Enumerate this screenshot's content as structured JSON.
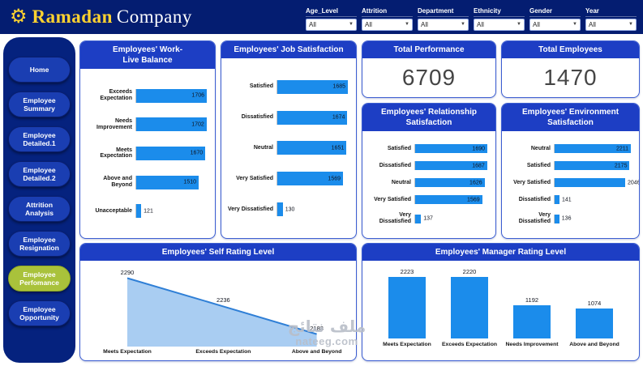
{
  "header": {
    "logo_primary": "Ramadan",
    "logo_secondary": "Company",
    "filters": [
      {
        "label": "Age_Level",
        "value": "All"
      },
      {
        "label": "Attrition",
        "value": "All"
      },
      {
        "label": "Department",
        "value": "All"
      },
      {
        "label": "Ethnicity",
        "value": "All"
      },
      {
        "label": "Gender",
        "value": "All"
      },
      {
        "label": "Year",
        "value": "All"
      }
    ]
  },
  "sidebar": {
    "items": [
      {
        "label": "Home",
        "active": false
      },
      {
        "label": "Employee Summary",
        "active": false
      },
      {
        "label": "Employee Detailed.1",
        "active": false
      },
      {
        "label": "Employee Detailed.2",
        "active": false
      },
      {
        "label": "Attrition Analysis",
        "active": false
      },
      {
        "label": "Employee Resignation",
        "active": false
      },
      {
        "label": "Employee Perfomance",
        "active": true
      },
      {
        "label": "Employee Opportunity",
        "active": false
      }
    ]
  },
  "kpis": [
    {
      "title": "Total Performance",
      "value": "6709"
    },
    {
      "title": "Total Employees",
      "value": "1470"
    }
  ],
  "chart_data": [
    {
      "type": "bar",
      "orientation": "horizontal",
      "title": "Employees' Work-Live Balance",
      "rows": [
        {
          "label": "Exceeds Expectation",
          "value": 1706,
          "value_label": "in"
        },
        {
          "label": "Needs Improvement",
          "value": 1702,
          "value_label": "in"
        },
        {
          "label": "Meets Expectation",
          "value": 1670,
          "value_label": "in"
        },
        {
          "label": "Above and Beyond",
          "value": 1510,
          "value_label": "in"
        },
        {
          "label": "Unacceptable",
          "value": 121,
          "value_label": "out"
        }
      ]
    },
    {
      "type": "bar",
      "orientation": "horizontal",
      "title": "Employees' Job Satisfaction",
      "rows": [
        {
          "label": "Satisfied",
          "value": 1685,
          "value_label": "in"
        },
        {
          "label": "Dissatisfied",
          "value": 1674,
          "value_label": "in"
        },
        {
          "label": "Neutral",
          "value": 1651,
          "value_label": "in"
        },
        {
          "label": "Very Satisfied",
          "value": 1569,
          "value_label": "in"
        },
        {
          "label": "Very Dissatisfied",
          "value": 130,
          "value_label": "out"
        }
      ]
    },
    {
      "type": "bar",
      "orientation": "horizontal",
      "title": "Employees' Relationship Satisfaction",
      "rows": [
        {
          "label": "Satisfied",
          "value": 1690,
          "value_label": "in"
        },
        {
          "label": "Dissatisfied",
          "value": 1687,
          "value_label": "in"
        },
        {
          "label": "Neutral",
          "value": 1626,
          "value_label": "in"
        },
        {
          "label": "Very Satisfied",
          "value": 1569,
          "value_label": "in"
        },
        {
          "label": "Very Dissatisfied",
          "value": 137,
          "value_label": "out"
        }
      ]
    },
    {
      "type": "bar",
      "orientation": "horizontal",
      "title": "Employees' Environment Satisfaction",
      "rows": [
        {
          "label": "Neutral",
          "value": 2211,
          "value_label": "in"
        },
        {
          "label": "Satisfied",
          "value": 2175,
          "value_label": "in"
        },
        {
          "label": "Very Satisfied",
          "value": 2046,
          "value_label": "out"
        },
        {
          "label": "Dissatisfied",
          "value": 141,
          "value_label": "out"
        },
        {
          "label": "Very Dissatisfied",
          "value": 136,
          "value_label": "out"
        }
      ]
    },
    {
      "type": "area",
      "title": "Employees' Self Rating Level",
      "categories": [
        "Meets Expectation",
        "Exceeds Expectation",
        "Above and Beyond"
      ],
      "values": [
        2290,
        2236,
        2183
      ],
      "legend": "off",
      "grid": "off"
    },
    {
      "type": "bar",
      "orientation": "vertical",
      "title": "Employees' Manager Rating Level",
      "categories": [
        "Meets Expectation",
        "Exceeds Expectation",
        "Needs Improvement",
        "Above and Beyond"
      ],
      "values": [
        2223,
        2220,
        1192,
        1074
      ],
      "legend": "off",
      "grid": "off"
    }
  ],
  "watermark": {
    "arabic": "ملف نتائج",
    "domain": "nateeg.com"
  },
  "icons": {
    "gear": "⚙",
    "chevron_down": "▼"
  },
  "colors": {
    "navy": "#041d71",
    "sidebar_navy": "#05227e",
    "card_header_blue": "#1d3ec4",
    "bar_blue": "#1b8ceb",
    "area_fill": "#a9cdf2",
    "area_line": "#2f7fd6",
    "active_nav_green": "#a9c23b",
    "logo_gold": "#ffd230"
  }
}
